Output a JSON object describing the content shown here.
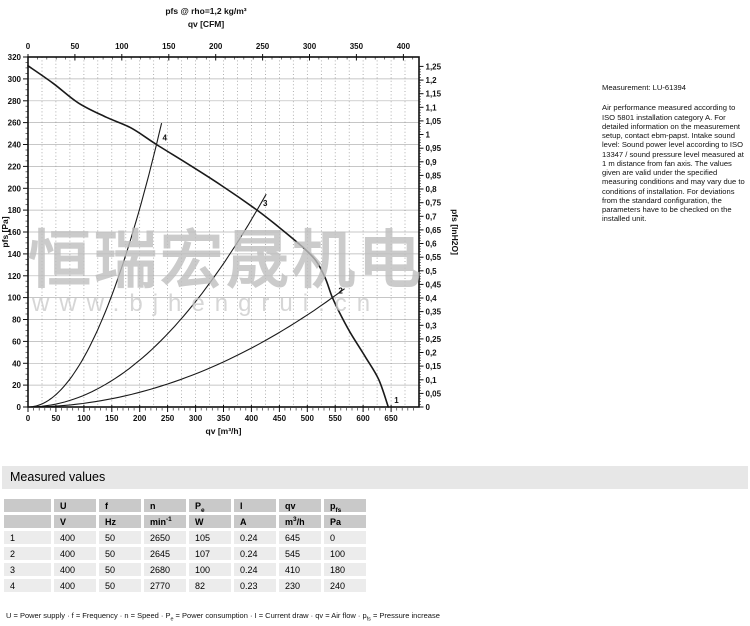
{
  "watermark": {
    "text": "恒瑞宏晟机电",
    "url": "www.bjhengrui.cn"
  },
  "notes": {
    "measurement": "Measurement: LU-61394",
    "paragraph": "Air performance measured according to ISO 5801 installation category A. For detailed information on the measurement setup, contact ebm-papst. Intake sound level: Sound power level according to ISO 13347 / sound pressure level measured at 1 m distance from fan axis. The values given are valid under the specified measuring conditions and may vary due to conditions of installation. For deviations from the standard configuration, the parameters have to be checked on the installed unit."
  },
  "chart_data": {
    "type": "line",
    "title": "pfs @ rho=1,2 kg/m³",
    "top_axis": {
      "label": "qv [CFM]",
      "ticks": [
        0,
        50,
        100,
        150,
        200,
        250,
        300,
        350,
        400
      ],
      "minor_step": 10,
      "cfm_to_m3h": 1.68
    },
    "bottom_axis": {
      "label": "qv [m³/h]",
      "ticks": [
        0,
        50,
        100,
        150,
        200,
        250,
        300,
        350,
        400,
        450,
        500,
        550,
        600,
        650
      ],
      "minor_step": 10,
      "range": [
        0,
        700
      ]
    },
    "left_axis": {
      "label": "pfs [Pa]",
      "ticks": [
        0,
        20,
        40,
        60,
        80,
        100,
        120,
        140,
        160,
        180,
        200,
        220,
        240,
        260,
        280,
        300,
        320
      ],
      "minor_step": 5,
      "range": [
        0,
        320
      ]
    },
    "right_axis": {
      "label": "pfs [InH2O]",
      "tick_step": 0.05,
      "max": 1.25,
      "minor_step": 0.01,
      "pa_per_unit": 249.1
    },
    "grid": {
      "h_step_pa": 20,
      "v_step_m3h": 25
    },
    "fan_curve": {
      "name": "fan-characteristic-curve",
      "points": [
        [
          0,
          312
        ],
        [
          45,
          296
        ],
        [
          90,
          278
        ],
        [
          140,
          265
        ],
        [
          185,
          255
        ],
        [
          230,
          240
        ],
        [
          290,
          221
        ],
        [
          345,
          203
        ],
        [
          410,
          180
        ],
        [
          450,
          164
        ],
        [
          490,
          147
        ],
        [
          515,
          134
        ],
        [
          532,
          118
        ],
        [
          545,
          100
        ],
        [
          562,
          82
        ],
        [
          578,
          67
        ],
        [
          605,
          45
        ],
        [
          628,
          25
        ],
        [
          645,
          0
        ]
      ]
    },
    "system_curves": [
      {
        "label": "1",
        "qv": 645,
        "pfs": 0
      },
      {
        "label": "2",
        "qv": 545,
        "pfs": 100
      },
      {
        "label": "3",
        "qv": 410,
        "pfs": 180
      },
      {
        "label": "4",
        "qv": 230,
        "pfs": 240
      }
    ],
    "operating_points": [
      {
        "label": "1",
        "qv_m3h": 645,
        "pfs_pa": 0
      },
      {
        "label": "2",
        "qv_m3h": 545,
        "pfs_pa": 100
      },
      {
        "label": "3",
        "qv_m3h": 410,
        "pfs_pa": 180
      },
      {
        "label": "4",
        "qv_m3h": 230,
        "pfs_pa": 240
      }
    ],
    "legend_position": "none",
    "grid_on": true
  },
  "table": {
    "title": "Measured values",
    "columns": [
      "",
      "U",
      "f",
      "n",
      "P_{e}",
      "I",
      "qv",
      "p_{fs}"
    ],
    "units": [
      "",
      "V",
      "Hz",
      "min^{-1}",
      "W",
      "A",
      "m^{3}/h",
      "Pa"
    ],
    "rows": [
      [
        "1",
        "400",
        "50",
        "2650",
        "105",
        "0.24",
        "645",
        "0"
      ],
      [
        "2",
        "400",
        "50",
        "2645",
        "107",
        "0.24",
        "545",
        "100"
      ],
      [
        "3",
        "400",
        "50",
        "2680",
        "100",
        "0.24",
        "410",
        "180"
      ],
      [
        "4",
        "400",
        "50",
        "2770",
        "82",
        "0.23",
        "230",
        "240"
      ]
    ],
    "legend": "U = Power supply · f = Frequency · n = Speed · P_{e} = Power consumption · I = Current draw · qv = Air flow · p_{fs} = Pressure increase"
  }
}
